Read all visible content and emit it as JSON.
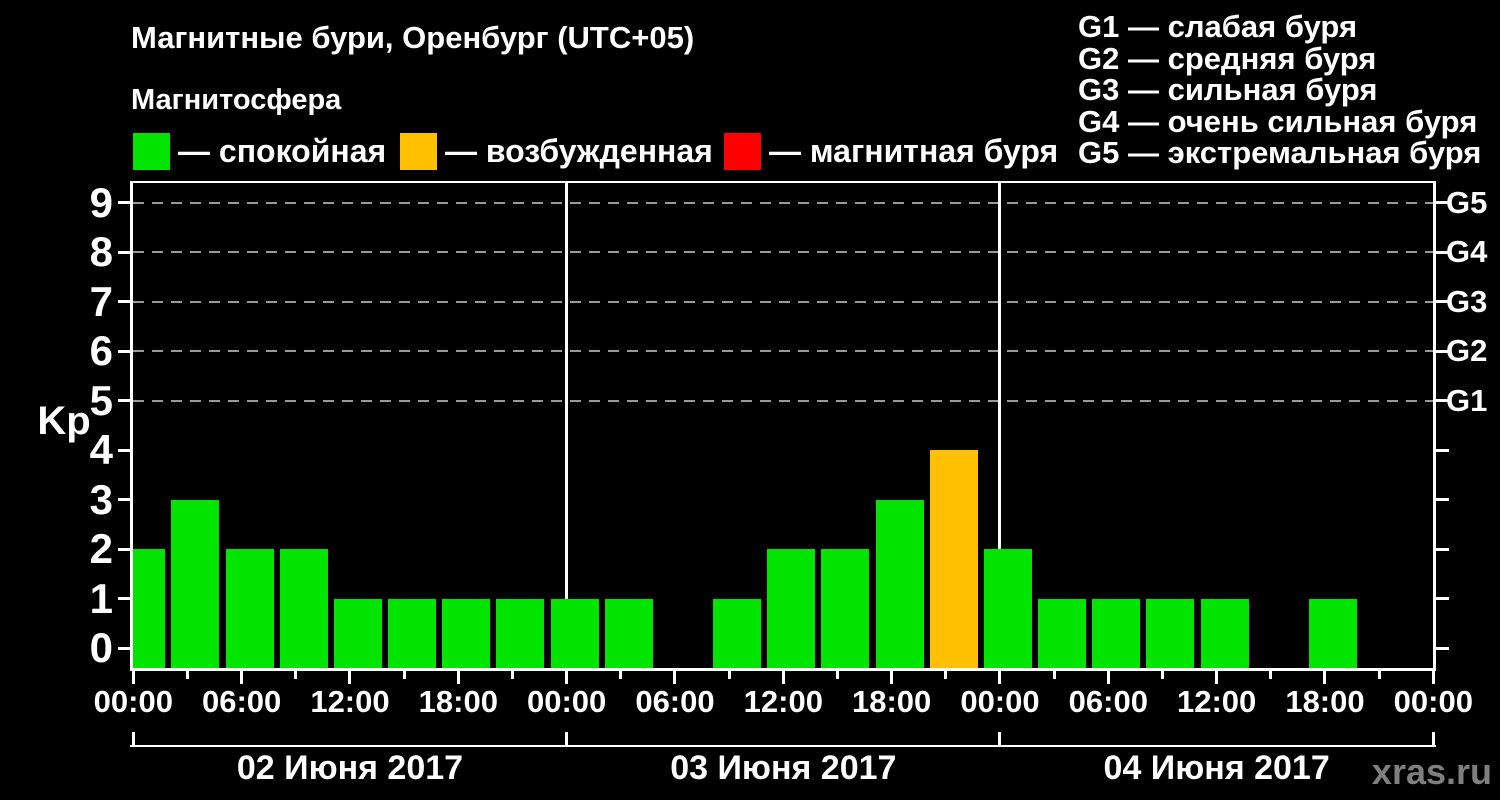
{
  "title": "Магнитные бури, Оренбург (UTC+05)",
  "subtitle": "Магнитосфера",
  "legend": {
    "items": [
      {
        "key": "quiet",
        "label": "— спокойная",
        "color": "#00E400"
      },
      {
        "key": "excited",
        "label": "— возбужденная",
        "color": "#FFC000"
      },
      {
        "key": "storm",
        "label": "— магнитная буря",
        "color": "#FF0000"
      }
    ]
  },
  "storm_scale_legend": [
    "G1 — слабая буря",
    "G2 — средняя буря",
    "G3 — сильная буря",
    "G4 — очень сильная буря",
    "G5 — экстремальная буря"
  ],
  "watermark": "xras.ru",
  "chart_data": {
    "type": "bar",
    "title": "Магнитные бури, Оренбург (UTC+05)",
    "ylabel": "Kp",
    "ylim": [
      -0.4,
      9.4
    ],
    "yticks": [
      0,
      1,
      2,
      3,
      4,
      5,
      6,
      7,
      8,
      9
    ],
    "grid_levels_kp": [
      5,
      6,
      7,
      8,
      9
    ],
    "grid_color": "#999999",
    "right_axis_labels": [
      {
        "label": "G1",
        "kp": 5
      },
      {
        "label": "G2",
        "kp": 6
      },
      {
        "label": "G3",
        "kp": 7
      },
      {
        "label": "G4",
        "kp": 8
      },
      {
        "label": "G5",
        "kp": 9
      }
    ],
    "x_slot_hours": 3,
    "x_tick_labels": [
      "00:00",
      "06:00",
      "12:00",
      "18:00",
      "00:00",
      "06:00",
      "12:00",
      "18:00",
      "00:00",
      "06:00",
      "12:00",
      "18:00",
      "00:00"
    ],
    "days": [
      {
        "date": "02 Июня 2017",
        "kp_values": [
          2,
          3,
          2,
          2,
          1,
          1,
          1,
          1
        ]
      },
      {
        "date": "03 Июня 2017",
        "kp_values": [
          1,
          1,
          null,
          1,
          2,
          2,
          3,
          4
        ]
      },
      {
        "date": "04 Июня 2017",
        "kp_values": [
          2,
          1,
          1,
          1,
          1,
          null,
          1,
          null
        ]
      }
    ],
    "bar_color_rules": [
      {
        "kp_max": 3,
        "color": "#00E400"
      },
      {
        "kp_max": 4,
        "color": "#FFC000"
      },
      {
        "kp_max": 9,
        "color": "#FF0000"
      }
    ]
  }
}
